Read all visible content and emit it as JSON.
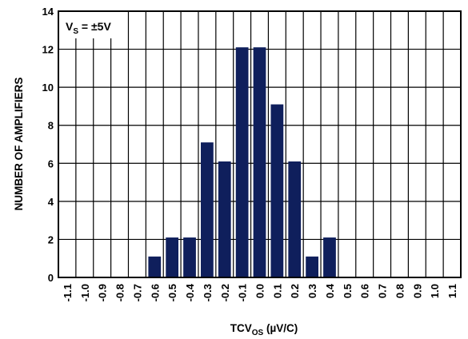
{
  "chart_data": {
    "type": "bar",
    "categories": [
      "-1.1",
      "-1.0",
      "-0.9",
      "-0.8",
      "-0.7",
      "-0.6",
      "-0.5",
      "-0.4",
      "-0.3",
      "-0.2",
      "-0.1",
      "0.0",
      "0.1",
      "0.2",
      "0.3",
      "0.4",
      "0.5",
      "0.6",
      "0.7",
      "0.8",
      "0.9",
      "1.0",
      "1.1"
    ],
    "values": [
      0,
      0,
      0,
      0,
      0,
      1.1,
      2.1,
      2.1,
      7.1,
      6.1,
      12.1,
      12.1,
      9.1,
      6.1,
      1.1,
      2.1,
      0,
      0,
      0,
      0,
      0,
      0,
      0
    ],
    "xlabel_main": "TCV",
    "xlabel_sub": "OS",
    "xlabel_unit": " (µV/C)",
    "ylabel": "NUMBER OF AMPLIFIERS",
    "ylim": [
      0,
      14
    ],
    "yticks": [
      "0",
      "2",
      "4",
      "6",
      "8",
      "10",
      "12",
      "14"
    ],
    "annotation": {
      "main": "V",
      "sub": "S",
      "rest": " = ±5V"
    },
    "grid": true,
    "bar_color": "#0f1f5c"
  }
}
